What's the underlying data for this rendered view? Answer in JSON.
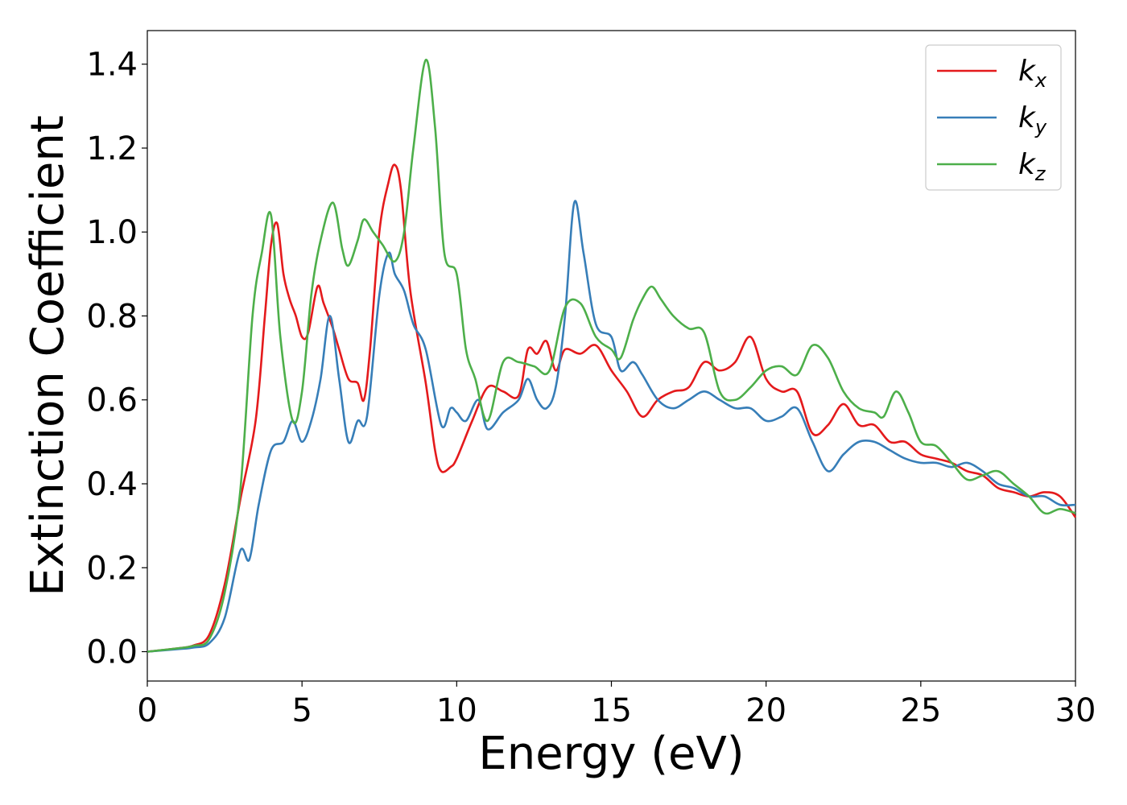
{
  "chart_data": {
    "type": "line",
    "xlabel": "Energy (eV)",
    "ylabel": "Extinction Coefficient",
    "xlim": [
      0,
      30
    ],
    "ylim": [
      -0.07,
      1.48
    ],
    "x_ticks": [
      "0",
      "5",
      "10",
      "15",
      "20",
      "25",
      "30"
    ],
    "y_ticks": [
      "0.0",
      "0.2",
      "0.4",
      "0.6",
      "0.8",
      "1.0",
      "1.2",
      "1.4"
    ],
    "grid": false,
    "legend_position": "top-right",
    "series": [
      {
        "name": "k_x",
        "legend_base": "k",
        "legend_sub": "x",
        "color": "#e41a1c",
        "points": [
          [
            0,
            0
          ],
          [
            1,
            0.008
          ],
          [
            1.5,
            0.015
          ],
          [
            2,
            0.04
          ],
          [
            2.5,
            0.16
          ],
          [
            3,
            0.36
          ],
          [
            3.5,
            0.55
          ],
          [
            3.8,
            0.8
          ],
          [
            4,
            0.97
          ],
          [
            4.2,
            1.02
          ],
          [
            4.4,
            0.9
          ],
          [
            4.6,
            0.84
          ],
          [
            4.8,
            0.8
          ],
          [
            5,
            0.75
          ],
          [
            5.2,
            0.76
          ],
          [
            5.5,
            0.87
          ],
          [
            5.7,
            0.83
          ],
          [
            6,
            0.77
          ],
          [
            6.2,
            0.72
          ],
          [
            6.5,
            0.65
          ],
          [
            6.8,
            0.64
          ],
          [
            7,
            0.6
          ],
          [
            7.2,
            0.72
          ],
          [
            7.5,
            1.0
          ],
          [
            7.8,
            1.12
          ],
          [
            8,
            1.16
          ],
          [
            8.2,
            1.1
          ],
          [
            8.5,
            0.86
          ],
          [
            9,
            0.64
          ],
          [
            9.3,
            0.48
          ],
          [
            9.5,
            0.43
          ],
          [
            9.8,
            0.44
          ],
          [
            10,
            0.46
          ],
          [
            10.5,
            0.55
          ],
          [
            11,
            0.63
          ],
          [
            11.5,
            0.62
          ],
          [
            12,
            0.61
          ],
          [
            12.3,
            0.72
          ],
          [
            12.6,
            0.71
          ],
          [
            12.9,
            0.74
          ],
          [
            13.2,
            0.67
          ],
          [
            13.5,
            0.72
          ],
          [
            14,
            0.71
          ],
          [
            14.5,
            0.73
          ],
          [
            15,
            0.67
          ],
          [
            15.5,
            0.62
          ],
          [
            16,
            0.56
          ],
          [
            16.5,
            0.6
          ],
          [
            17,
            0.62
          ],
          [
            17.5,
            0.63
          ],
          [
            18,
            0.69
          ],
          [
            18.5,
            0.67
          ],
          [
            19,
            0.69
          ],
          [
            19.5,
            0.75
          ],
          [
            20,
            0.65
          ],
          [
            20.5,
            0.62
          ],
          [
            21,
            0.62
          ],
          [
            21.5,
            0.52
          ],
          [
            22,
            0.54
          ],
          [
            22.5,
            0.59
          ],
          [
            23,
            0.54
          ],
          [
            23.5,
            0.54
          ],
          [
            24,
            0.5
          ],
          [
            24.5,
            0.5
          ],
          [
            25,
            0.47
          ],
          [
            25.5,
            0.46
          ],
          [
            26,
            0.45
          ],
          [
            26.5,
            0.43
          ],
          [
            27,
            0.42
          ],
          [
            27.5,
            0.39
          ],
          [
            28,
            0.38
          ],
          [
            28.5,
            0.37
          ],
          [
            29,
            0.38
          ],
          [
            29.5,
            0.37
          ],
          [
            30,
            0.32
          ]
        ]
      },
      {
        "name": "k_y",
        "legend_base": "k",
        "legend_sub": "y",
        "color": "#377eb8",
        "points": [
          [
            0,
            0
          ],
          [
            1,
            0.006
          ],
          [
            1.5,
            0.01
          ],
          [
            2,
            0.02
          ],
          [
            2.5,
            0.08
          ],
          [
            3,
            0.24
          ],
          [
            3.3,
            0.22
          ],
          [
            3.6,
            0.35
          ],
          [
            4,
            0.48
          ],
          [
            4.4,
            0.5
          ],
          [
            4.7,
            0.55
          ],
          [
            5,
            0.5
          ],
          [
            5.3,
            0.55
          ],
          [
            5.6,
            0.65
          ],
          [
            5.9,
            0.8
          ],
          [
            6.2,
            0.65
          ],
          [
            6.5,
            0.5
          ],
          [
            6.8,
            0.55
          ],
          [
            7.1,
            0.56
          ],
          [
            7.5,
            0.85
          ],
          [
            7.8,
            0.95
          ],
          [
            8,
            0.9
          ],
          [
            8.3,
            0.86
          ],
          [
            8.6,
            0.78
          ],
          [
            9,
            0.72
          ],
          [
            9.5,
            0.54
          ],
          [
            9.8,
            0.58
          ],
          [
            10,
            0.57
          ],
          [
            10.3,
            0.55
          ],
          [
            10.7,
            0.6
          ],
          [
            11,
            0.53
          ],
          [
            11.5,
            0.57
          ],
          [
            12,
            0.6
          ],
          [
            12.3,
            0.65
          ],
          [
            12.6,
            0.6
          ],
          [
            12.9,
            0.58
          ],
          [
            13.2,
            0.63
          ],
          [
            13.5,
            0.8
          ],
          [
            13.8,
            1.07
          ],
          [
            14.1,
            0.95
          ],
          [
            14.5,
            0.78
          ],
          [
            15,
            0.75
          ],
          [
            15.3,
            0.67
          ],
          [
            15.7,
            0.69
          ],
          [
            16,
            0.66
          ],
          [
            16.5,
            0.6
          ],
          [
            17,
            0.58
          ],
          [
            17.5,
            0.6
          ],
          [
            18,
            0.62
          ],
          [
            18.5,
            0.6
          ],
          [
            19,
            0.58
          ],
          [
            19.5,
            0.58
          ],
          [
            20,
            0.55
          ],
          [
            20.5,
            0.56
          ],
          [
            21,
            0.58
          ],
          [
            21.5,
            0.5
          ],
          [
            22,
            0.43
          ],
          [
            22.5,
            0.47
          ],
          [
            23,
            0.5
          ],
          [
            23.5,
            0.5
          ],
          [
            24,
            0.48
          ],
          [
            24.5,
            0.46
          ],
          [
            25,
            0.45
          ],
          [
            25.5,
            0.45
          ],
          [
            26,
            0.44
          ],
          [
            26.5,
            0.45
          ],
          [
            27,
            0.43
          ],
          [
            27.5,
            0.4
          ],
          [
            28,
            0.39
          ],
          [
            28.5,
            0.37
          ],
          [
            29,
            0.37
          ],
          [
            29.5,
            0.35
          ],
          [
            30,
            0.35
          ]
        ]
      },
      {
        "name": "k_z",
        "legend_base": "k",
        "legend_sub": "z",
        "color": "#4daf4a",
        "points": [
          [
            0,
            0
          ],
          [
            1,
            0.008
          ],
          [
            1.5,
            0.014
          ],
          [
            2,
            0.03
          ],
          [
            2.5,
            0.14
          ],
          [
            3,
            0.38
          ],
          [
            3.4,
            0.8
          ],
          [
            3.7,
            0.95
          ],
          [
            4,
            1.04
          ],
          [
            4.3,
            0.75
          ],
          [
            4.7,
            0.55
          ],
          [
            5,
            0.62
          ],
          [
            5.3,
            0.85
          ],
          [
            5.6,
            0.98
          ],
          [
            6,
            1.07
          ],
          [
            6.3,
            0.96
          ],
          [
            6.5,
            0.92
          ],
          [
            6.8,
            0.98
          ],
          [
            7,
            1.03
          ],
          [
            7.3,
            1.0
          ],
          [
            7.6,
            0.97
          ],
          [
            8,
            0.93
          ],
          [
            8.3,
            1.0
          ],
          [
            8.6,
            1.2
          ],
          [
            9,
            1.41
          ],
          [
            9.3,
            1.25
          ],
          [
            9.6,
            0.95
          ],
          [
            10,
            0.9
          ],
          [
            10.3,
            0.72
          ],
          [
            10.6,
            0.65
          ],
          [
            11,
            0.55
          ],
          [
            11.5,
            0.69
          ],
          [
            12,
            0.69
          ],
          [
            12.5,
            0.68
          ],
          [
            13,
            0.67
          ],
          [
            13.5,
            0.82
          ],
          [
            14,
            0.83
          ],
          [
            14.5,
            0.75
          ],
          [
            15,
            0.72
          ],
          [
            15.3,
            0.7
          ],
          [
            15.7,
            0.79
          ],
          [
            16,
            0.84
          ],
          [
            16.3,
            0.87
          ],
          [
            16.6,
            0.84
          ],
          [
            17,
            0.8
          ],
          [
            17.5,
            0.77
          ],
          [
            18,
            0.76
          ],
          [
            18.5,
            0.62
          ],
          [
            19,
            0.6
          ],
          [
            19.5,
            0.63
          ],
          [
            20,
            0.67
          ],
          [
            20.5,
            0.68
          ],
          [
            21,
            0.66
          ],
          [
            21.5,
            0.73
          ],
          [
            22,
            0.7
          ],
          [
            22.5,
            0.62
          ],
          [
            23,
            0.58
          ],
          [
            23.5,
            0.57
          ],
          [
            23.8,
            0.56
          ],
          [
            24.2,
            0.62
          ],
          [
            24.6,
            0.57
          ],
          [
            25,
            0.5
          ],
          [
            25.5,
            0.49
          ],
          [
            26,
            0.45
          ],
          [
            26.5,
            0.41
          ],
          [
            27,
            0.42
          ],
          [
            27.5,
            0.43
          ],
          [
            28,
            0.4
          ],
          [
            28.5,
            0.37
          ],
          [
            29,
            0.33
          ],
          [
            29.5,
            0.34
          ],
          [
            30,
            0.33
          ]
        ]
      }
    ]
  }
}
